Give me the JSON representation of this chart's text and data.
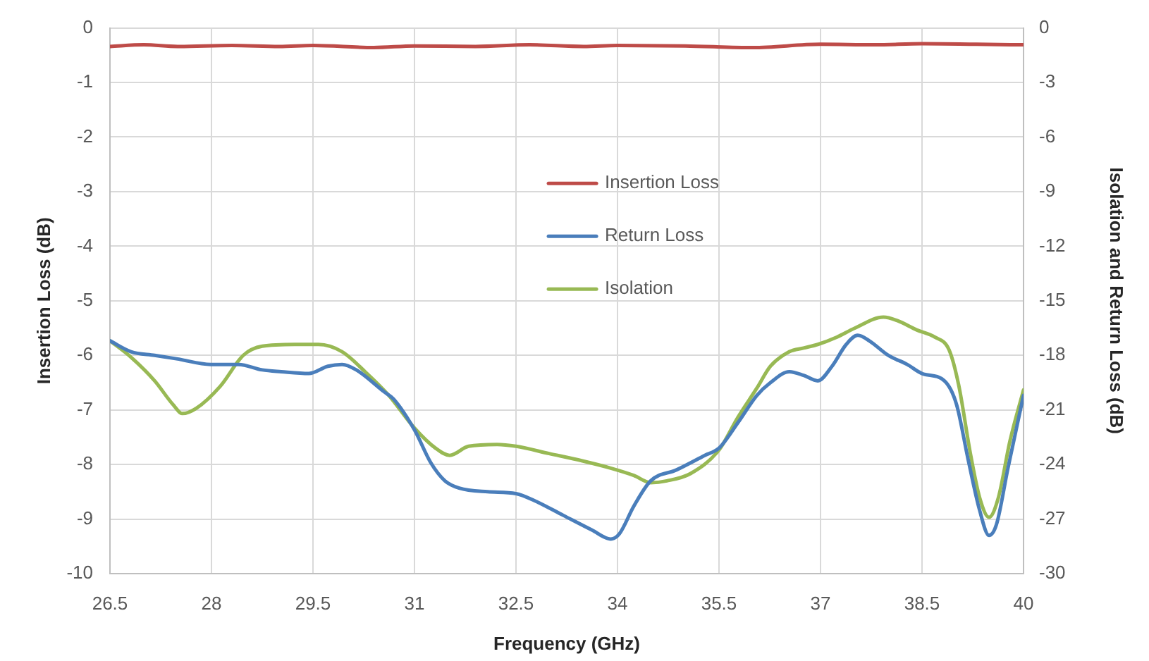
{
  "chart_data": {
    "type": "line",
    "xlabel": "Frequency (GHz)",
    "ylabel": "Insertion Loss (dB)",
    "y2label": "Isolation and Return Loss (dB)",
    "xlim": [
      26.5,
      40
    ],
    "xticks": [
      26.5,
      28,
      29.5,
      31,
      32.5,
      34,
      35.5,
      37,
      38.5,
      40
    ],
    "ylim": [
      -10,
      0
    ],
    "yticks": [
      0,
      -1,
      -2,
      -3,
      -4,
      -5,
      -6,
      -7,
      -8,
      -9,
      -10
    ],
    "y2lim": [
      -30,
      0
    ],
    "y2ticks": [
      0,
      -3,
      -6,
      -9,
      -12,
      -15,
      -18,
      -21,
      -24,
      -27,
      -30
    ],
    "grid": true,
    "legend": "top",
    "marker": "none",
    "series": [
      {
        "name": "Insertion Loss",
        "color": "#be4b48",
        "x": [
          26.5,
          27,
          27.5,
          28.3,
          29,
          29.5,
          30.4,
          31,
          31.9,
          32.7,
          33.5,
          34,
          35,
          36,
          37,
          37.8,
          38.5,
          39.3,
          40
        ],
        "values": [
          -0.34,
          -0.31,
          -0.34,
          -0.32,
          -0.34,
          -0.32,
          -0.36,
          -0.33,
          -0.34,
          -0.31,
          -0.34,
          -0.32,
          -0.33,
          -0.36,
          -0.3,
          -0.31,
          -0.29,
          -0.3,
          -0.31
        ]
      },
      {
        "name": "Return Loss",
        "color": "#4a7ebb",
        "axis": "y2",
        "x": [
          26.5,
          26.81,
          27.16,
          27.5,
          27.99,
          28.4,
          28.75,
          29.03,
          29.44,
          29.72,
          29.93,
          30.14,
          30.55,
          30.69,
          31,
          31.24,
          31.45,
          31.66,
          32.08,
          32.5,
          32.78,
          33.2,
          33.62,
          33.9,
          34.03,
          34.24,
          34.49,
          34.87,
          35.29,
          35.5,
          35.78,
          36.06,
          36.26,
          36.54,
          36.75,
          36.96,
          37.17,
          37.38,
          37.55,
          37.72,
          38,
          38.28,
          38.5,
          38.83,
          39.01,
          39.18,
          39.35,
          39.49,
          39.6,
          39.77,
          40
        ],
        "values": [
          -17.2,
          -17.8,
          -18,
          -18.2,
          -18.5,
          -18.5,
          -18.8,
          -18.9,
          -19,
          -18.6,
          -18.5,
          -18.8,
          -20,
          -20.4,
          -22.1,
          -23.9,
          -24.9,
          -25.3,
          -25.5,
          -25.6,
          -26,
          -26.8,
          -27.6,
          -28.1,
          -27.8,
          -26.3,
          -24.9,
          -24.3,
          -23.5,
          -23.1,
          -21.7,
          -20.2,
          -19.5,
          -18.9,
          -19.1,
          -19.4,
          -18.6,
          -17.4,
          -16.9,
          -17.2,
          -18,
          -18.5,
          -19,
          -19.4,
          -20.7,
          -23.7,
          -26.5,
          -27.9,
          -27.3,
          -24.2,
          -20.2
        ]
      },
      {
        "name": "Isolation",
        "color": "#98b954",
        "axis": "y2",
        "x": [
          26.5,
          26.81,
          27.16,
          27.43,
          27.57,
          27.78,
          28.13,
          28.47,
          28.75,
          29.23,
          29.58,
          29.93,
          30.27,
          30.62,
          31,
          31.31,
          31.52,
          31.8,
          32.22,
          32.5,
          32.99,
          33.48,
          33.9,
          34.24,
          34.49,
          34.73,
          35.08,
          35.5,
          35.78,
          36.06,
          36.26,
          36.54,
          36.75,
          36.96,
          37.24,
          37.51,
          37.93,
          38.14,
          38.42,
          38.69,
          38.9,
          39.04,
          39.22,
          39.35,
          39.49,
          39.63,
          39.8,
          40
        ],
        "values": [
          -17.2,
          -18.1,
          -19.4,
          -20.7,
          -21.2,
          -20.9,
          -19.7,
          -18,
          -17.5,
          -17.4,
          -17.4,
          -17.8,
          -18.9,
          -20.2,
          -22,
          -23.1,
          -23.5,
          -23,
          -22.9,
          -23,
          -23.4,
          -23.8,
          -24.2,
          -24.6,
          -25,
          -24.9,
          -24.5,
          -23.2,
          -21.4,
          -19.8,
          -18.6,
          -17.8,
          -17.6,
          -17.4,
          -17,
          -16.5,
          -15.9,
          -16.1,
          -16.6,
          -17,
          -17.7,
          -19.6,
          -23.5,
          -25.8,
          -26.9,
          -25.8,
          -22.7,
          -19.9
        ]
      }
    ]
  }
}
